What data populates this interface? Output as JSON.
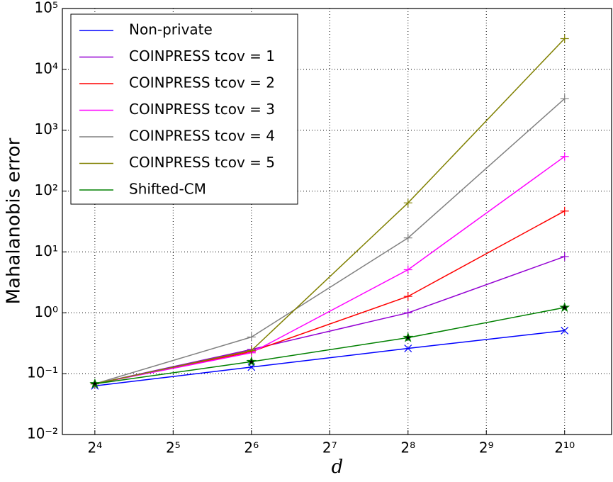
{
  "chart_data": {
    "type": "line",
    "ylabel": "Mahalanobis error",
    "xlabel": "d",
    "x": [
      16,
      64,
      256,
      1024
    ],
    "xscale": "log",
    "yscale": "log",
    "xlim": [
      12,
      1552
    ],
    "ylim": [
      0.01,
      100000
    ],
    "xticks": [
      {
        "value": 16,
        "label": "2⁴"
      },
      {
        "value": 32,
        "label": "2⁵"
      },
      {
        "value": 64,
        "label": "2⁶"
      },
      {
        "value": 128,
        "label": "2⁷"
      },
      {
        "value": 256,
        "label": "2⁸"
      },
      {
        "value": 512,
        "label": "2⁹"
      },
      {
        "value": 1024,
        "label": "2¹⁰"
      }
    ],
    "yticks": [
      {
        "value": 0.01,
        "label": "10⁻²"
      },
      {
        "value": 0.1,
        "label": "10⁻¹"
      },
      {
        "value": 1,
        "label": "10⁰"
      },
      {
        "value": 10,
        "label": "10¹"
      },
      {
        "value": 100,
        "label": "10²"
      },
      {
        "value": 1000,
        "label": "10³"
      },
      {
        "value": 10000,
        "label": "10⁴"
      },
      {
        "value": 100000,
        "label": "10⁵"
      }
    ],
    "grid": true,
    "legend": "upper left",
    "series": [
      {
        "name": "Non-private",
        "color": "#0000ff",
        "marker": "x",
        "values": [
          0.063,
          0.128,
          0.26,
          0.51
        ]
      },
      {
        "name": "COINPRESS tcov = 1",
        "color": "#9400d3",
        "marker": "+",
        "values": [
          0.068,
          0.25,
          1.0,
          8.4
        ]
      },
      {
        "name": "COINPRESS tcov = 2",
        "color": "#ff0000",
        "marker": "+",
        "values": [
          0.068,
          0.23,
          1.86,
          47
        ]
      },
      {
        "name": "COINPRESS tcov = 3",
        "color": "#ff00ff",
        "marker": "+",
        "values": [
          0.068,
          0.22,
          5.1,
          370
        ]
      },
      {
        "name": "COINPRESS tcov = 4",
        "color": "#808080",
        "marker": "+",
        "values": [
          0.068,
          0.4,
          17,
          3300
        ]
      },
      {
        "name": "COINPRESS tcov = 5",
        "color": "#808000",
        "marker": "+",
        "values": [
          0.068,
          0.24,
          64,
          32000
        ]
      },
      {
        "name": "Shifted-CM",
        "color": "#008000",
        "marker": "*",
        "values": [
          0.068,
          0.157,
          0.39,
          1.22
        ]
      }
    ]
  }
}
